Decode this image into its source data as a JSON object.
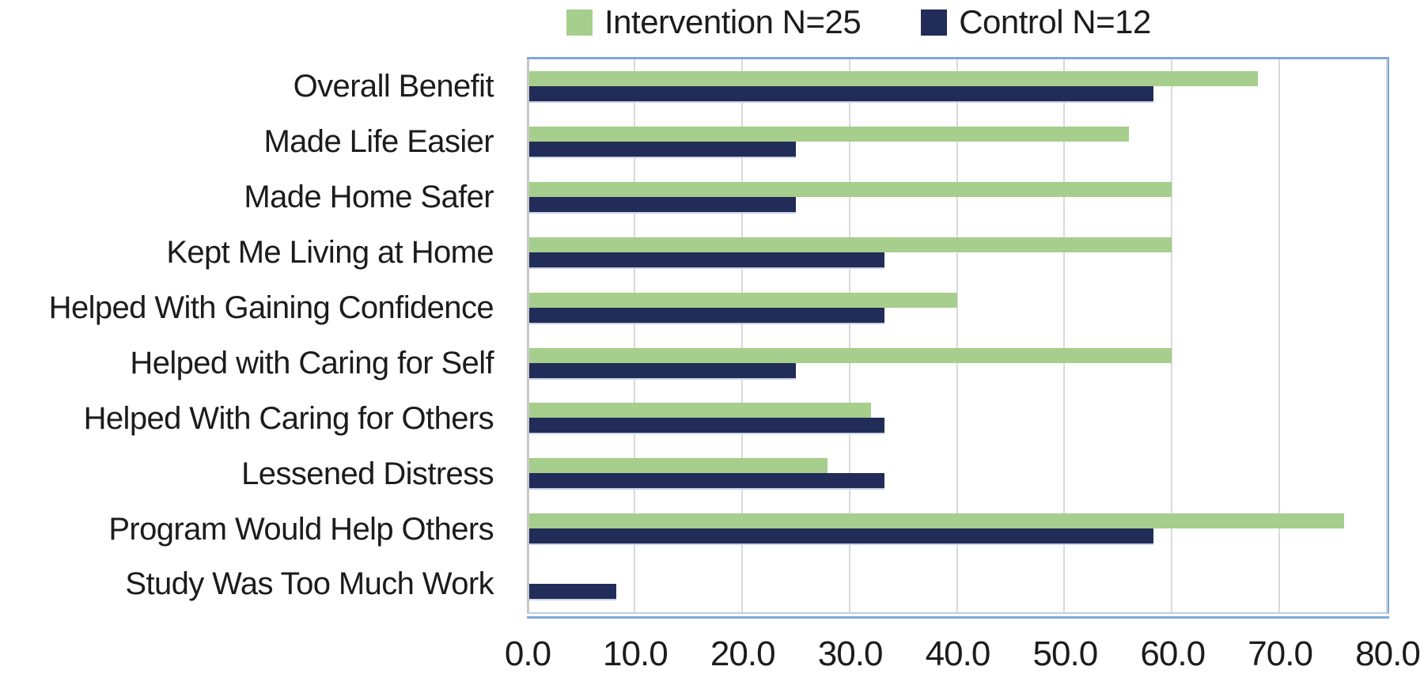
{
  "chart_data": {
    "type": "bar",
    "orientation": "horizontal",
    "title": "",
    "xlabel": "",
    "ylabel": "",
    "categories": [
      "Overall Benefit",
      "Made Life Easier",
      "Made Home Safer",
      "Kept Me Living at Home",
      "Helped With Gaining Confidence",
      "Helped with Caring for Self",
      "Helped With Caring for Others",
      "Lessened Distress",
      "Program Would Help Others",
      "Study Was Too Much Work"
    ],
    "series": [
      {
        "name": "Intervention N=25",
        "color": "#a6ce8c",
        "values": [
          68,
          56,
          60,
          60,
          40,
          60,
          32,
          28,
          76,
          0
        ]
      },
      {
        "name": "Control N=12",
        "color": "#222c58",
        "values": [
          58.3,
          25,
          25,
          33.3,
          33.3,
          25,
          33.3,
          33.3,
          58.3,
          8.3
        ]
      }
    ],
    "xlim": [
      0,
      80
    ],
    "x_tick_labels": [
      "0.0",
      "10.0",
      "20.0",
      "30.0",
      "40.0",
      "50.0",
      "60.0",
      "70.0",
      "80.0"
    ],
    "grid": true,
    "legend_position": "top",
    "styles": {
      "plot_border_color": "#7fa8d8",
      "plot_border_light": "#b9cfea",
      "gridline_color": "#d9d9d9",
      "axis_line_color": "#c8c8c8",
      "control_bar_edge_color": "#c9d2e8",
      "text_color": "#1c1c1c",
      "background": "#ffffff"
    }
  }
}
